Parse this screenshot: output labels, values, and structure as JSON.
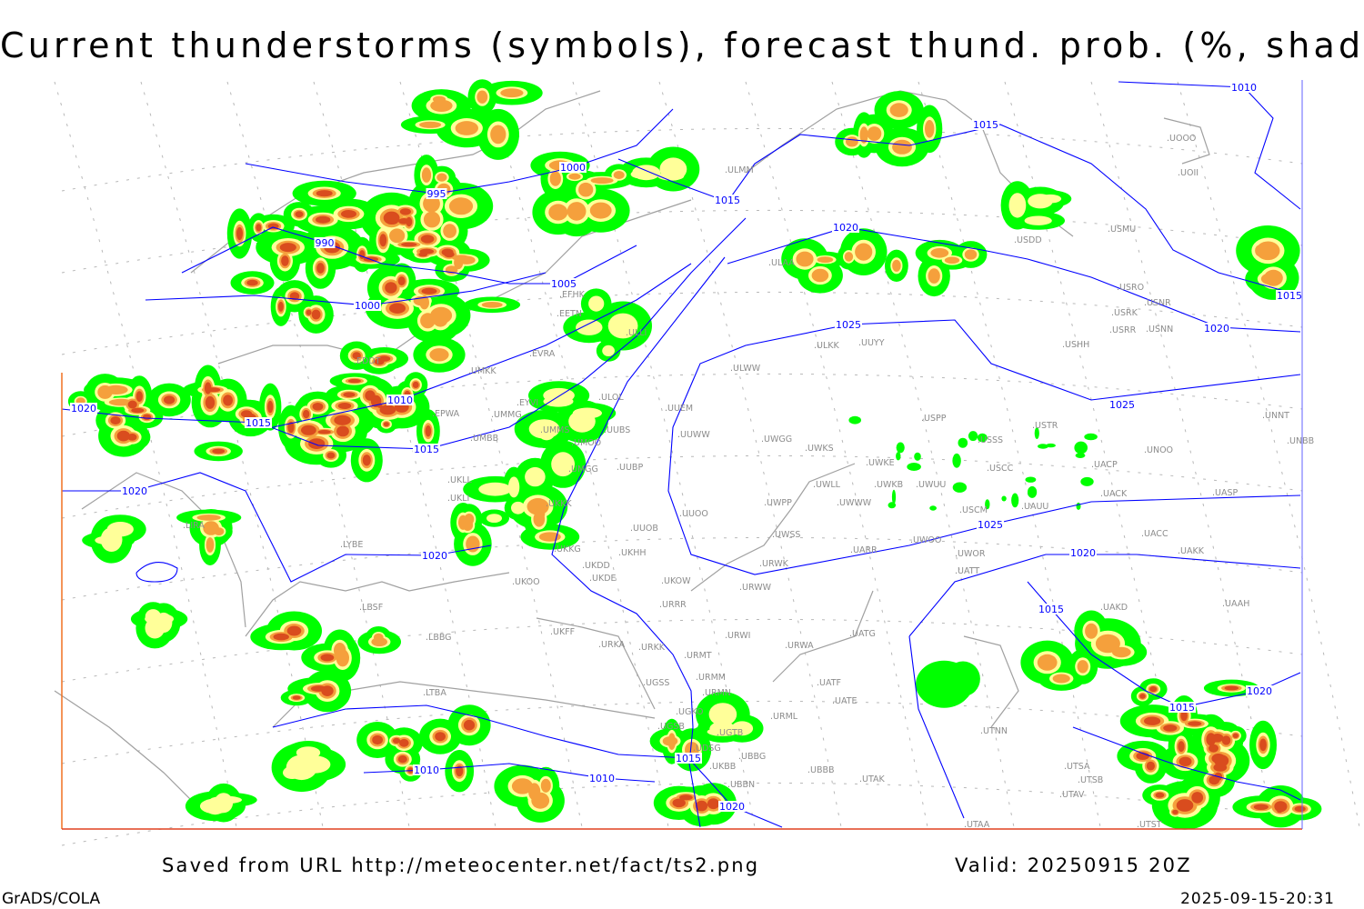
{
  "title": "Current thunderstorms (symbols), forecast thund. prob. (%, shaded)",
  "footer": {
    "saved": "Saved from URL http://meteocenter.net/fact/ts2.png",
    "valid": "Valid: 20250915 20Z",
    "software": "GrADS/COLA",
    "generated": "2025-09-15-20:31"
  },
  "colors": {
    "prob_low": "#00ff00",
    "prob_mid": "#ffff99",
    "prob_high": "#f5a03c",
    "prob_max": "#d94c1e",
    "isobar": "#0000ff",
    "coast": "#a0a0a0"
  },
  "isobar_labels": [
    "990",
    "995",
    "1000",
    "1000",
    "1005",
    "1010",
    "1015",
    "1020",
    "1010",
    "1015",
    "1015",
    "1020",
    "1025",
    "1025",
    "1025",
    "1020",
    "1015",
    "1015",
    "1020",
    "1020",
    "1015",
    "1020",
    "1020",
    "1015",
    "1010",
    "1010",
    "1015",
    "1020"
  ],
  "stations": [
    "UOOO",
    "UOII",
    "USMU",
    "USDD",
    "ULAA",
    "USRO",
    "USRK",
    "USNR",
    "USNN",
    "USRR",
    "USHH",
    "ULKK",
    "UUYY",
    "ULWW",
    "UUEM",
    "UUWW",
    "UWGG",
    "UWKS",
    "USPP",
    "USTR",
    "USSS",
    "UNOO",
    "UNNT",
    "UNBB",
    "UWKE",
    "USCC",
    "UACP",
    "UWLL",
    "UWKB",
    "UWUU",
    "UWWW",
    "UWPP",
    "USCM",
    "UAUU",
    "UACK",
    "UASP",
    "UUOO",
    "UWSS",
    "UARR",
    "UWOO",
    "UWOR",
    "UACC",
    "UAKK",
    "UATT",
    "URWK",
    "URWW",
    "UKOW",
    "URRR",
    "UKHH",
    "UKDD",
    "UKDE",
    "UKKG",
    "UKOO",
    "UKFF",
    "URKA",
    "URKK",
    "URMT",
    "URWI",
    "URWA",
    "UATG",
    "URMM",
    "URMN",
    "UATF",
    "UATE",
    "URML",
    "UGSS",
    "UGKO",
    "UGSB",
    "UGTB",
    "UDSG",
    "UBBG",
    "UBBB",
    "UTAK",
    "UBBN",
    "EDDT",
    "EFHK",
    "EETN",
    "EVRA",
    "ULLI",
    "ULOL",
    "UMMG",
    "UMMS",
    "UMOO",
    "UUBS",
    "UMBB",
    "UMGG",
    "UUBP",
    "UKLL",
    "UKLI",
    "UKKK",
    "UUOB",
    "LYBE",
    "LIRA",
    "LBSF",
    "LBBG",
    "LTBA",
    "ULMM",
    "UMKK",
    "EPWA",
    "UAKD",
    "UAAH",
    "UTNN",
    "UTSB",
    "UTSA",
    "UTAV",
    "UTAA",
    "UTST",
    "EYVI",
    "UKBB"
  ]
}
